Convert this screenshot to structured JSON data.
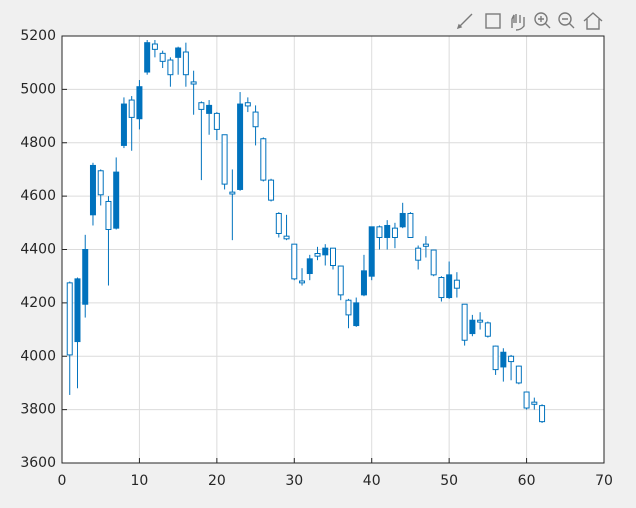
{
  "chart_data": {
    "type": "candlestick",
    "color": "#0072bd",
    "filled_when": "close_below_open",
    "grid": true,
    "x": [
      1,
      2,
      3,
      4,
      5,
      6,
      7,
      8,
      9,
      10,
      11,
      12,
      13,
      14,
      15,
      16,
      17,
      18,
      19,
      20,
      21,
      22,
      23,
      24,
      25,
      26,
      27,
      28,
      29,
      30,
      31,
      32,
      33,
      34,
      35,
      36,
      37,
      38,
      39,
      40,
      41,
      42,
      43,
      44,
      45,
      46,
      47,
      48,
      49,
      50,
      51,
      52,
      53,
      54,
      55,
      56,
      57,
      58,
      59,
      60,
      61,
      62
    ],
    "open": [
      4005,
      4290,
      4400,
      4715,
      4605,
      4475,
      4690,
      4945,
      4895,
      5010,
      5175,
      5150,
      5105,
      5055,
      5155,
      5055,
      5020,
      4925,
      4940,
      4850,
      4645,
      4608,
      4945,
      4938,
      4860,
      4660,
      4585,
      4460,
      4440,
      4290,
      4275,
      4365,
      4375,
      4405,
      4340,
      4230,
      4155,
      4200,
      4320,
      4485,
      4445,
      4490,
      4445,
      4535,
      4445,
      4360,
      4412,
      4305,
      4220,
      4305,
      4255,
      4060,
      4135,
      4128,
      4075,
      3950,
      4015,
      3980,
      3900,
      3806,
      3820,
      3755
    ],
    "high": [
      4280,
      4295,
      4455,
      4725,
      4700,
      4600,
      4745,
      4970,
      4975,
      5035,
      5185,
      5185,
      5145,
      5120,
      5160,
      5175,
      5070,
      4955,
      4960,
      4915,
      4830,
      4700,
      4990,
      4970,
      4940,
      4820,
      4665,
      4540,
      4530,
      4420,
      4330,
      4380,
      4410,
      4420,
      4405,
      4340,
      4215,
      4220,
      4380,
      4485,
      4490,
      4510,
      4500,
      4575,
      4540,
      4415,
      4450,
      4400,
      4300,
      4355,
      4315,
      4195,
      4155,
      4165,
      4130,
      4040,
      4030,
      4005,
      3965,
      3868,
      3845,
      3820
    ],
    "low": [
      3855,
      3880,
      4145,
      4490,
      4565,
      4265,
      4475,
      4780,
      4770,
      4850,
      5055,
      5120,
      5080,
      5010,
      5055,
      5010,
      4905,
      4660,
      4830,
      4810,
      4625,
      4435,
      4620,
      4915,
      4790,
      4655,
      4580,
      4445,
      4435,
      4285,
      4265,
      4285,
      4360,
      4340,
      4325,
      4210,
      4105,
      4110,
      4225,
      4285,
      4400,
      4400,
      4405,
      4480,
      4445,
      4325,
      4370,
      4300,
      4205,
      4215,
      4220,
      4040,
      4075,
      4100,
      4070,
      3930,
      3905,
      3910,
      3895,
      3800,
      3800,
      3750
    ],
    "close": [
      4275,
      4055,
      4195,
      4530,
      4695,
      4580,
      4480,
      4790,
      4960,
      4890,
      5065,
      5170,
      5135,
      5110,
      5120,
      5140,
      5028,
      4950,
      4910,
      4910,
      4830,
      4615,
      4625,
      4950,
      4915,
      4815,
      4660,
      4535,
      4450,
      4420,
      4282,
      4310,
      4385,
      4380,
      4405,
      4338,
      4210,
      4115,
      4230,
      4300,
      4485,
      4445,
      4480,
      4485,
      4535,
      4405,
      4420,
      4398,
      4295,
      4220,
      4285,
      4195,
      4085,
      4135,
      4125,
      4038,
      3960,
      4000,
      3963,
      3866,
      3828,
      3815
    ],
    "xlim": [
      0,
      70
    ],
    "xticks": [
      0,
      10,
      20,
      30,
      40,
      50,
      60,
      70
    ],
    "ylim": [
      3600,
      5200
    ],
    "yticks": [
      3600,
      3800,
      4000,
      4200,
      4400,
      4600,
      4800,
      5000,
      5200
    ]
  }
}
